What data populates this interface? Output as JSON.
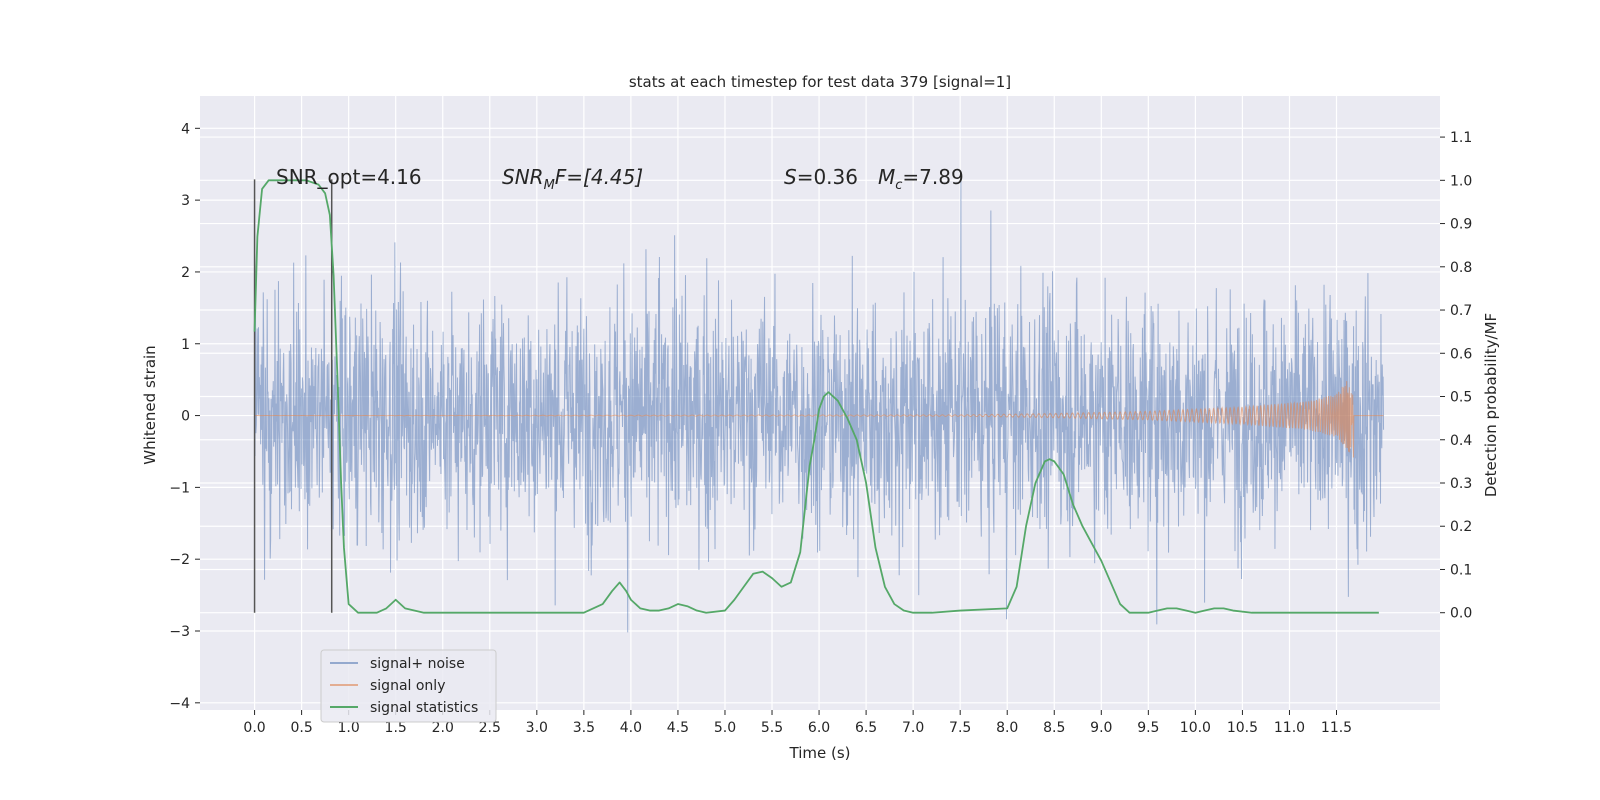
{
  "chart_data": {
    "type": "line",
    "title": "stats at each timestep for test data 379 [signal=1]",
    "xlabel": "Time (s)",
    "ylabel": "Whitened strain",
    "y2label": "Detection probability/MF",
    "xlim": [
      -0.58,
      12.6
    ],
    "ylim": [
      -4.1,
      4.45
    ],
    "y2lim": [
      -0.225,
      1.195
    ],
    "xticks": [
      "0.0",
      "0.5",
      "1.0",
      "1.5",
      "2.0",
      "2.5",
      "3.0",
      "3.5",
      "4.0",
      "4.5",
      "5.0",
      "5.5",
      "6.0",
      "6.5",
      "7.0",
      "7.5",
      "8.0",
      "8.5",
      "9.0",
      "9.5",
      "10.0",
      "10.5",
      "11.0",
      "11.5"
    ],
    "yticks": [
      "4",
      "3",
      "2",
      "1",
      "0",
      "−1",
      "−2",
      "−3",
      "−4"
    ],
    "y2ticks": [
      "1.1",
      "1.0",
      "0.9",
      "0.8",
      "0.7",
      "0.6",
      "0.5",
      "0.4",
      "0.3",
      "0.2",
      "0.1",
      "0.0"
    ],
    "grid": true,
    "legend_position": "lower-left",
    "colors": {
      "noise": "#4c72b0",
      "signal": "#dd8452",
      "stats": "#55a868",
      "background": "#eaeaf2",
      "vline": "#555555"
    },
    "annotations": {
      "snr_opt": "SNR_opt=4.16",
      "snr_mf_prefix": "SNR",
      "snr_mf_sub": "M",
      "snr_mf_rest": "F=[4.45]",
      "s_italic": "S",
      "s_value": "=0.36",
      "mc_italic": "M",
      "mc_sub": "c",
      "mc_value": "=7.89"
    },
    "vlines_x": [
      0.0,
      0.82
    ],
    "series": [
      {
        "name": "signal+ noise",
        "description_range": "noise band approx ±1.4 dense, peaks to about ±4"
      },
      {
        "name": "signal only",
        "envelope": [
          [
            0,
            0.0
          ],
          [
            7.5,
            0.01
          ],
          [
            8.5,
            0.03
          ],
          [
            9.5,
            0.06
          ],
          [
            10.5,
            0.12
          ],
          [
            11.2,
            0.2
          ],
          [
            11.5,
            0.3
          ],
          [
            11.65,
            0.55
          ],
          [
            11.68,
            -0.62
          ],
          [
            11.7,
            0.0
          ],
          [
            12.0,
            0.0
          ]
        ]
      },
      {
        "name": "signal statistics",
        "x": [
          0.0,
          0.03,
          0.08,
          0.15,
          0.25,
          0.4,
          0.55,
          0.68,
          0.75,
          0.8,
          0.84,
          0.88,
          0.92,
          0.95,
          1.0,
          1.1,
          1.2,
          1.3,
          1.4,
          1.5,
          1.6,
          1.8,
          2.0,
          2.5,
          3.0,
          3.5,
          3.7,
          3.8,
          3.88,
          3.95,
          4.0,
          4.1,
          4.2,
          4.3,
          4.4,
          4.5,
          4.6,
          4.7,
          4.8,
          5.0,
          5.1,
          5.2,
          5.3,
          5.4,
          5.5,
          5.6,
          5.7,
          5.8,
          5.9,
          5.95,
          6.0,
          6.05,
          6.1,
          6.2,
          6.3,
          6.4,
          6.5,
          6.6,
          6.7,
          6.8,
          6.9,
          7.0,
          7.2,
          7.5,
          8.0,
          8.1,
          8.2,
          8.3,
          8.4,
          8.45,
          8.5,
          8.6,
          8.7,
          8.8,
          8.9,
          9.0,
          9.1,
          9.2,
          9.3,
          9.4,
          9.5,
          9.6,
          9.7,
          9.8,
          9.9,
          10.0,
          10.1,
          10.2,
          10.3,
          10.4,
          10.6,
          11.0,
          11.5,
          11.95
        ],
        "values": [
          0.65,
          0.87,
          0.98,
          1.0,
          1.0,
          1.0,
          1.0,
          0.99,
          0.97,
          0.92,
          0.78,
          0.55,
          0.3,
          0.15,
          0.02,
          0.0,
          0.0,
          0.0,
          0.01,
          0.03,
          0.01,
          0.0,
          0.0,
          0.0,
          0.0,
          0.0,
          0.02,
          0.05,
          0.07,
          0.05,
          0.03,
          0.01,
          0.005,
          0.005,
          0.01,
          0.02,
          0.015,
          0.005,
          0.0,
          0.005,
          0.03,
          0.06,
          0.09,
          0.095,
          0.08,
          0.06,
          0.07,
          0.14,
          0.34,
          0.4,
          0.47,
          0.5,
          0.51,
          0.49,
          0.45,
          0.4,
          0.3,
          0.15,
          0.06,
          0.02,
          0.005,
          0.0,
          0.0,
          0.005,
          0.01,
          0.06,
          0.2,
          0.3,
          0.35,
          0.355,
          0.35,
          0.32,
          0.25,
          0.2,
          0.16,
          0.12,
          0.07,
          0.02,
          0.0,
          0.0,
          0.0,
          0.005,
          0.01,
          0.01,
          0.005,
          0.0,
          0.005,
          0.01,
          0.01,
          0.005,
          0.0,
          0.0,
          0.0,
          0.0
        ]
      }
    ]
  }
}
